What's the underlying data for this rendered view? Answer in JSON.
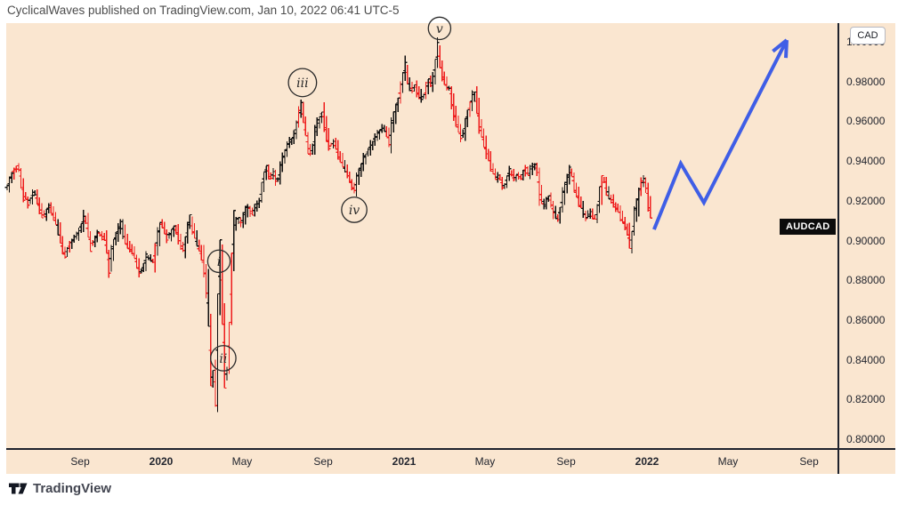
{
  "header": {
    "publish_line": "CyclicalWaves published on TradingView.com, Jan 10, 2022 06:41 UTC-5"
  },
  "footer": {
    "brand": "TradingView"
  },
  "price_scale": {
    "currency_button_label": "CAD",
    "symbol_badge_label": "AUDCAD",
    "tick_labels": [
      "1.00000",
      "0.98000",
      "0.96000",
      "0.94000",
      "0.92000",
      "0.90000",
      "0.88000",
      "0.86000",
      "0.84000",
      "0.82000",
      "0.80000"
    ]
  },
  "time_scale": {
    "ticks": [
      {
        "label": "Sep",
        "t": 2019.667,
        "bold": false
      },
      {
        "label": "2020",
        "t": 2020.0,
        "bold": true
      },
      {
        "label": "May",
        "t": 2020.333,
        "bold": false
      },
      {
        "label": "Sep",
        "t": 2020.667,
        "bold": false
      },
      {
        "label": "2021",
        "t": 2021.0,
        "bold": true
      },
      {
        "label": "May",
        "t": 2021.333,
        "bold": false
      },
      {
        "label": "Sep",
        "t": 2021.667,
        "bold": false
      },
      {
        "label": "2022",
        "t": 2022.0,
        "bold": true
      },
      {
        "label": "May",
        "t": 2022.333,
        "bold": false
      },
      {
        "label": "Sep",
        "t": 2022.667,
        "bold": false
      }
    ]
  },
  "chart_data": {
    "type": "line",
    "style": "ohlc-bars",
    "title": "AUDCAD",
    "xlabel": "",
    "ylabel": "CAD",
    "x_range_decimal_years": [
      2019.35,
      2022.79
    ],
    "y_range": [
      0.7955,
      1.0103
    ],
    "y_tick_step": 0.02,
    "y_ticks": [
      1.0,
      0.98,
      0.96,
      0.94,
      0.92,
      0.9,
      0.88,
      0.86,
      0.84,
      0.82,
      0.8
    ],
    "last_price": 0.9074,
    "colors": {
      "up_bar": "#101010",
      "down_bar": "#ee1c1c",
      "arrow": "#3f5ee6",
      "background": "#FAE6D0"
    },
    "series": [
      {
        "name": "AUDCAD price path",
        "points": [
          [
            2019.366,
            0.9275
          ],
          [
            2019.388,
            0.9342
          ],
          [
            2019.41,
            0.9387
          ],
          [
            2019.432,
            0.9239
          ],
          [
            2019.454,
            0.9195
          ],
          [
            2019.476,
            0.9253
          ],
          [
            2019.513,
            0.9119
          ],
          [
            2019.539,
            0.9177
          ],
          [
            2019.564,
            0.9105
          ],
          [
            2019.601,
            0.8926
          ],
          [
            2019.63,
            0.8998
          ],
          [
            2019.659,
            0.9043
          ],
          [
            2019.685,
            0.9132
          ],
          [
            2019.711,
            0.8971
          ],
          [
            2019.74,
            0.9043
          ],
          [
            2019.769,
            0.9007
          ],
          [
            2019.784,
            0.8872
          ],
          [
            2019.806,
            0.9007
          ],
          [
            2019.832,
            0.9087
          ],
          [
            2019.857,
            0.8984
          ],
          [
            2019.886,
            0.894
          ],
          [
            2019.912,
            0.8837
          ],
          [
            2019.941,
            0.8926
          ],
          [
            2019.967,
            0.8895
          ],
          [
            2019.996,
            0.9096
          ],
          [
            2020.026,
            0.9016
          ],
          [
            2020.055,
            0.9074
          ],
          [
            2020.088,
            0.8953
          ],
          [
            2020.117,
            0.9114
          ],
          [
            2020.143,
            0.8998
          ],
          [
            2020.172,
            0.8908
          ],
          [
            2020.19,
            0.8738
          ],
          [
            2020.201,
            0.8425
          ],
          [
            2020.209,
            0.8081
          ],
          [
            2020.216,
            0.847
          ],
          [
            2020.223,
            0.8224
          ],
          [
            2020.234,
            0.8738
          ],
          [
            2020.242,
            0.898
          ],
          [
            2020.253,
            0.8604
          ],
          [
            2020.26,
            0.8336
          ],
          [
            2020.267,
            0.8255
          ],
          [
            2020.278,
            0.8514
          ],
          [
            2020.289,
            0.8872
          ],
          [
            2020.3,
            0.9087
          ],
          [
            2020.315,
            0.9114
          ],
          [
            2020.33,
            0.9096
          ],
          [
            2020.344,
            0.915
          ],
          [
            2020.359,
            0.9172
          ],
          [
            2020.374,
            0.9137
          ],
          [
            2020.388,
            0.9177
          ],
          [
            2020.403,
            0.919
          ],
          [
            2020.418,
            0.932
          ],
          [
            2020.432,
            0.9374
          ],
          [
            2020.447,
            0.932
          ],
          [
            2020.462,
            0.9351
          ],
          [
            2020.476,
            0.9293
          ],
          [
            2020.491,
            0.9374
          ],
          [
            2020.505,
            0.9432
          ],
          [
            2020.52,
            0.9485
          ],
          [
            2020.535,
            0.9508
          ],
          [
            2020.549,
            0.9535
          ],
          [
            2020.564,
            0.9624
          ],
          [
            2020.575,
            0.9678
          ],
          [
            2020.59,
            0.9566
          ],
          [
            2020.604,
            0.9477
          ],
          [
            2020.619,
            0.9445
          ],
          [
            2020.634,
            0.9544
          ],
          [
            2020.648,
            0.9611
          ],
          [
            2020.663,
            0.9651
          ],
          [
            2020.678,
            0.9544
          ],
          [
            2020.692,
            0.9477
          ],
          [
            2020.711,
            0.9499
          ],
          [
            2020.729,
            0.9432
          ],
          [
            2020.747,
            0.9383
          ],
          [
            2020.766,
            0.9338
          ],
          [
            2020.78,
            0.9293
          ],
          [
            2020.795,
            0.9262
          ],
          [
            2020.81,
            0.9338
          ],
          [
            2020.824,
            0.9383
          ],
          [
            2020.839,
            0.9427
          ],
          [
            2020.853,
            0.9463
          ],
          [
            2020.868,
            0.9494
          ],
          [
            2020.883,
            0.953
          ],
          [
            2020.897,
            0.9553
          ],
          [
            2020.912,
            0.9575
          ],
          [
            2020.927,
            0.9539
          ],
          [
            2020.938,
            0.9499
          ],
          [
            2020.949,
            0.9588
          ],
          [
            2020.963,
            0.9655
          ],
          [
            2020.978,
            0.9723
          ],
          [
            2020.993,
            0.9812
          ],
          [
            2021.004,
            0.9879
          ],
          [
            2021.015,
            0.9803
          ],
          [
            2021.029,
            0.9763
          ],
          [
            2021.044,
            0.9785
          ],
          [
            2021.059,
            0.974
          ],
          [
            2021.077,
            0.9714
          ],
          [
            2021.088,
            0.9767
          ],
          [
            2021.099,
            0.9808
          ],
          [
            2021.11,
            0.9785
          ],
          [
            2021.121,
            0.983
          ],
          [
            2021.132,
            0.9937
          ],
          [
            2021.139,
            0.9982
          ],
          [
            2021.15,
            0.9875
          ],
          [
            2021.161,
            0.9817
          ],
          [
            2021.172,
            0.9772
          ],
          [
            2021.183,
            0.9785
          ],
          [
            2021.194,
            0.9718
          ],
          [
            2021.205,
            0.9651
          ],
          [
            2021.216,
            0.9584
          ],
          [
            2021.227,
            0.9544
          ],
          [
            2021.238,
            0.9517
          ],
          [
            2021.249,
            0.9584
          ],
          [
            2021.26,
            0.9638
          ],
          [
            2021.271,
            0.9687
          ],
          [
            2021.282,
            0.9732
          ],
          [
            2021.289,
            0.9749
          ],
          [
            2021.3,
            0.9673
          ],
          [
            2021.311,
            0.9584
          ],
          [
            2021.322,
            0.9517
          ],
          [
            2021.333,
            0.9468
          ],
          [
            2021.344,
            0.9427
          ],
          [
            2021.355,
            0.9383
          ],
          [
            2021.366,
            0.9356
          ],
          [
            2021.377,
            0.9315
          ],
          [
            2021.388,
            0.9338
          ],
          [
            2021.399,
            0.9293
          ],
          [
            2021.41,
            0.9262
          ],
          [
            2021.421,
            0.9315
          ],
          [
            2021.432,
            0.9351
          ],
          [
            2021.443,
            0.9338
          ],
          [
            2021.454,
            0.9315
          ],
          [
            2021.465,
            0.9338
          ],
          [
            2021.476,
            0.9315
          ],
          [
            2021.487,
            0.9338
          ],
          [
            2021.498,
            0.936
          ],
          [
            2021.509,
            0.9338
          ],
          [
            2021.52,
            0.9365
          ],
          [
            2021.535,
            0.9392
          ],
          [
            2021.546,
            0.9365
          ],
          [
            2021.557,
            0.9253
          ],
          [
            2021.568,
            0.9195
          ],
          [
            2021.579,
            0.9177
          ],
          [
            2021.59,
            0.9226
          ],
          [
            2021.601,
            0.9204
          ],
          [
            2021.612,
            0.9159
          ],
          [
            2021.623,
            0.9128
          ],
          [
            2021.634,
            0.911
          ],
          [
            2021.645,
            0.9181
          ],
          [
            2021.656,
            0.9248
          ],
          [
            2021.667,
            0.9293
          ],
          [
            2021.678,
            0.9338
          ],
          [
            2021.685,
            0.9369
          ],
          [
            2021.696,
            0.9293
          ],
          [
            2021.707,
            0.9248
          ],
          [
            2021.718,
            0.9204
          ],
          [
            2021.729,
            0.9172
          ],
          [
            2021.74,
            0.9137
          ],
          [
            2021.751,
            0.9114
          ],
          [
            2021.762,
            0.9146
          ],
          [
            2021.773,
            0.9128
          ],
          [
            2021.784,
            0.9114
          ],
          [
            2021.795,
            0.9159
          ],
          [
            2021.806,
            0.9248
          ],
          [
            2021.817,
            0.9333
          ],
          [
            2021.828,
            0.9271
          ],
          [
            2021.839,
            0.9235
          ],
          [
            2021.85,
            0.9217
          ],
          [
            2021.861,
            0.919
          ],
          [
            2021.872,
            0.9172
          ],
          [
            2021.883,
            0.9146
          ],
          [
            2021.894,
            0.9114
          ],
          [
            2021.905,
            0.9092
          ],
          [
            2021.916,
            0.9065
          ],
          [
            2021.927,
            0.8971
          ],
          [
            2021.938,
            0.9047
          ],
          [
            2021.949,
            0.9137
          ],
          [
            2021.96,
            0.9204
          ],
          [
            2021.971,
            0.9271
          ],
          [
            2021.982,
            0.9311
          ],
          [
            2021.993,
            0.9293
          ],
          [
            2022.0,
            0.9226
          ],
          [
            2022.011,
            0.9154
          ],
          [
            2022.022,
            0.9074
          ]
        ]
      }
    ],
    "wave_labels": [
      {
        "text": "i",
        "t": 2020.238,
        "price": 0.89
      },
      {
        "text": "ii",
        "t": 2020.256,
        "price": 0.8412
      },
      {
        "text": "iii",
        "t": 2020.582,
        "price": 0.9799
      },
      {
        "text": "iv",
        "t": 2020.795,
        "price": 0.9159
      },
      {
        "text": "v",
        "t": 2021.146,
        "price": 1.0072
      }
    ],
    "projection_arrow": {
      "points": [
        [
          2022.029,
          0.906
        ],
        [
          2022.139,
          0.9392
        ],
        [
          2022.234,
          0.9195
        ],
        [
          2022.575,
          1.0013
        ]
      ]
    }
  }
}
